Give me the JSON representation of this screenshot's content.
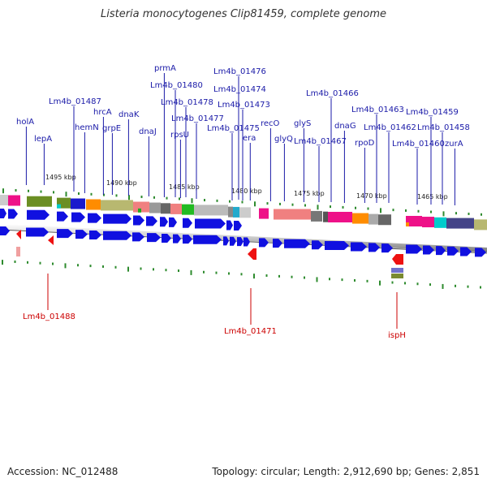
{
  "title": "Listeria monocytogenes Clip81459, complete genome",
  "footer": {
    "accession": "Accession: NC_012488",
    "summary": "Topology: circular; Length: 2,912,690 bp; Genes: 2,851"
  },
  "colors": {
    "label_blue": "#1a1aa8",
    "label_red": "#cc0000",
    "gene_arrow": "#1010e0",
    "tick": "#2e8b2e",
    "rna_red": "#ee1111"
  },
  "scale_labels": [
    "1495 kbp",
    "1490 kbp",
    "1485 kbp",
    "1480 kbp",
    "1475 kbp",
    "1470 kbp",
    "1465 kbp"
  ],
  "top_gene_labels": [
    "holA",
    "lepA",
    "Lm4b_01487",
    "hemN",
    "hrcA",
    "grpE",
    "dnaK",
    "dnaJ",
    "prmA",
    "Lm4b_01480",
    "Lm4b_01478",
    "rpsU",
    "Lm4b_01477",
    "Lm4b_01476",
    "Lm4b_01474",
    "Lm4b_01473",
    "Lm4b_01475",
    "era",
    "recO",
    "glyQ",
    "Lm4b_01467",
    "glyS",
    "Lm4b_01466",
    "dnaG",
    "rpoD",
    "Lm4b_01463",
    "Lm4b_01462",
    "Lm4b_01459",
    "Lm4b_01460",
    "Lm4b_01458",
    "zurA"
  ],
  "bottom_gene_labels": [
    "Lm4b_01488",
    "Lm4b_01471",
    "ispH"
  ]
}
